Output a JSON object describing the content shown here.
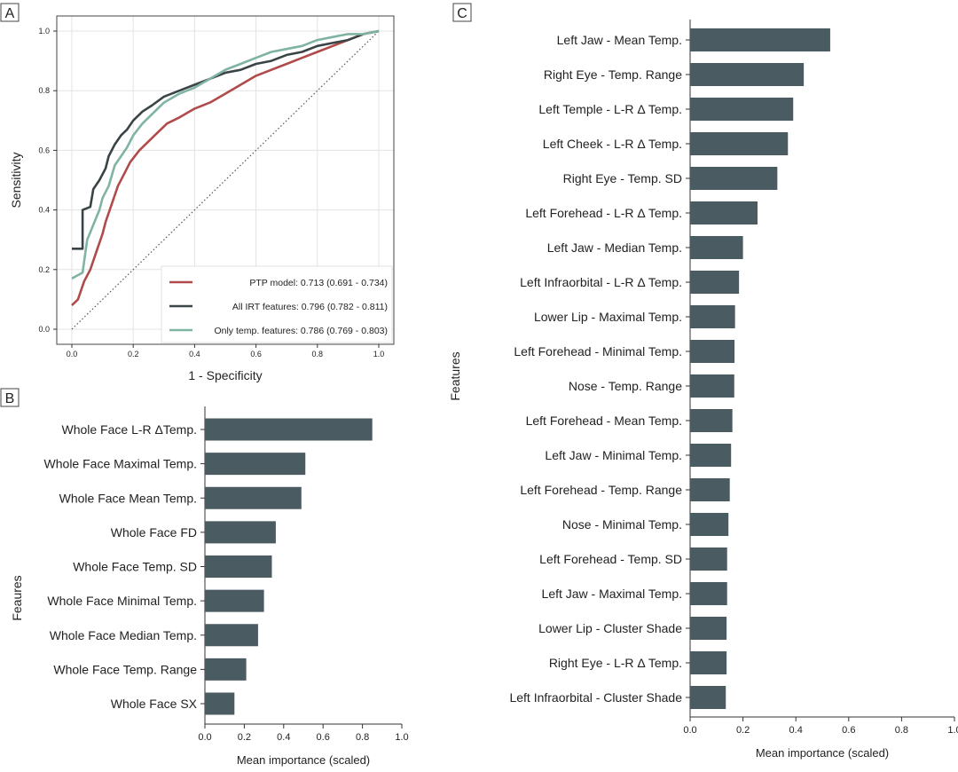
{
  "colors": {
    "bar": "#4b5b62",
    "ptp": "#b14a4a",
    "all_irt": "#3a4447",
    "only_temp": "#7fb3a3",
    "chance": "#555555"
  },
  "chart_data": [
    {
      "panel": "A",
      "type": "line",
      "xlabel": "1 - Specificity",
      "ylabel": "Sensitivity",
      "xlim": [
        0,
        1
      ],
      "ylim": [
        0,
        1
      ],
      "xticks": [
        "0.0",
        "0.2",
        "0.4",
        "0.6",
        "0.8",
        "1.0"
      ],
      "yticks": [
        "0.0",
        "0.2",
        "0.4",
        "0.6",
        "0.8",
        "1.0"
      ],
      "grid": true,
      "legend_position": "bottom-right",
      "diagonal_reference": true,
      "series": [
        {
          "name": "PTP model: 0.713 (0.691 - 0.734)",
          "color_key": "ptp",
          "x": [
            0,
            0.02,
            0.04,
            0.06,
            0.08,
            0.1,
            0.11,
            0.13,
            0.15,
            0.17,
            0.19,
            0.22,
            0.25,
            0.28,
            0.31,
            0.35,
            0.4,
            0.45,
            0.5,
            0.55,
            0.6,
            0.65,
            0.7,
            0.75,
            0.8,
            0.85,
            0.9,
            0.95,
            1.0
          ],
          "y": [
            0.08,
            0.1,
            0.16,
            0.2,
            0.26,
            0.32,
            0.36,
            0.42,
            0.48,
            0.52,
            0.56,
            0.6,
            0.63,
            0.66,
            0.69,
            0.71,
            0.74,
            0.76,
            0.79,
            0.82,
            0.85,
            0.87,
            0.89,
            0.91,
            0.93,
            0.95,
            0.97,
            0.99,
            1.0
          ]
        },
        {
          "name": "All IRT features: 0.796 (0.782 - 0.811)",
          "color_key": "all_irt",
          "x": [
            0,
            0.035,
            0.035,
            0.06,
            0.07,
            0.09,
            0.11,
            0.12,
            0.14,
            0.16,
            0.18,
            0.2,
            0.23,
            0.26,
            0.3,
            0.35,
            0.4,
            0.45,
            0.5,
            0.55,
            0.6,
            0.65,
            0.7,
            0.75,
            0.8,
            0.85,
            0.9,
            0.95,
            1.0
          ],
          "y": [
            0.27,
            0.27,
            0.4,
            0.41,
            0.47,
            0.5,
            0.54,
            0.58,
            0.62,
            0.65,
            0.67,
            0.7,
            0.73,
            0.75,
            0.78,
            0.8,
            0.82,
            0.84,
            0.86,
            0.87,
            0.89,
            0.9,
            0.92,
            0.93,
            0.95,
            0.96,
            0.97,
            0.99,
            1.0
          ]
        },
        {
          "name": "Only temp. features: 0.786 (0.769 - 0.803)",
          "color_key": "only_temp",
          "x": [
            0,
            0.035,
            0.05,
            0.07,
            0.09,
            0.1,
            0.12,
            0.14,
            0.16,
            0.18,
            0.2,
            0.23,
            0.26,
            0.3,
            0.35,
            0.4,
            0.45,
            0.5,
            0.55,
            0.6,
            0.65,
            0.7,
            0.75,
            0.8,
            0.85,
            0.9,
            0.95,
            1.0
          ],
          "y": [
            0.17,
            0.19,
            0.3,
            0.35,
            0.4,
            0.44,
            0.48,
            0.55,
            0.58,
            0.61,
            0.65,
            0.69,
            0.72,
            0.76,
            0.79,
            0.81,
            0.84,
            0.87,
            0.89,
            0.91,
            0.93,
            0.94,
            0.95,
            0.97,
            0.98,
            0.99,
            0.99,
            1.0
          ]
        }
      ]
    },
    {
      "panel": "B",
      "type": "bar",
      "orientation": "horizontal",
      "xlabel": "Mean importance (scaled)",
      "ylabel": "Feaures",
      "xlim": [
        0,
        1
      ],
      "xticks": [
        "0.0",
        "0.2",
        "0.4",
        "0.6",
        "0.8",
        "1.0"
      ],
      "categories": [
        "Whole Face L-R ΔTemp.",
        "Whole Face Maximal Temp.",
        "Whole Face Mean Temp.",
        "Whole Face FD",
        "Whole Face Temp. SD",
        "Whole Face Minimal Temp.",
        "Whole Face Median Temp.",
        "Whole Face Temp. Range",
        "Whole Face SX"
      ],
      "values": [
        0.85,
        0.51,
        0.49,
        0.36,
        0.34,
        0.3,
        0.27,
        0.21,
        0.15
      ]
    },
    {
      "panel": "C",
      "type": "bar",
      "orientation": "horizontal",
      "xlabel": "Mean importance (scaled)",
      "ylabel": "Features",
      "xlim": [
        0,
        1
      ],
      "xticks": [
        "0.0",
        "0.2",
        "0.4",
        "0.6",
        "0.8",
        "1.0"
      ],
      "categories": [
        "Left Jaw - Mean Temp.",
        "Right Eye - Temp. Range",
        "Left Temple - L-R Δ Temp.",
        "Left Cheek - L-R Δ Temp.",
        "Right Eye - Temp. SD",
        "Left Forehead - L-R Δ Temp.",
        "Left Jaw - Median Temp.",
        "Left Infraorbital - L-R Δ Temp.",
        "Lower Lip - Maximal Temp.",
        "Left Forehead - Minimal Temp.",
        "Nose - Temp. Range",
        "Left Forehead - Mean Temp.",
        "Left Jaw - Minimal Temp.",
        "Left Forehead - Temp. Range",
        "Nose - Minimal Temp.",
        "Left Forehead - Temp. SD",
        "Left Jaw - Maximal Temp.",
        "Lower Lip - Cluster Shade",
        "Right Eye - L-R Δ Temp.",
        "Left Infraorbital - Cluster Shade"
      ],
      "values": [
        0.53,
        0.43,
        0.39,
        0.37,
        0.33,
        0.255,
        0.2,
        0.185,
        0.17,
        0.168,
        0.167,
        0.16,
        0.155,
        0.15,
        0.145,
        0.14,
        0.14,
        0.138,
        0.138,
        0.135
      ]
    }
  ]
}
